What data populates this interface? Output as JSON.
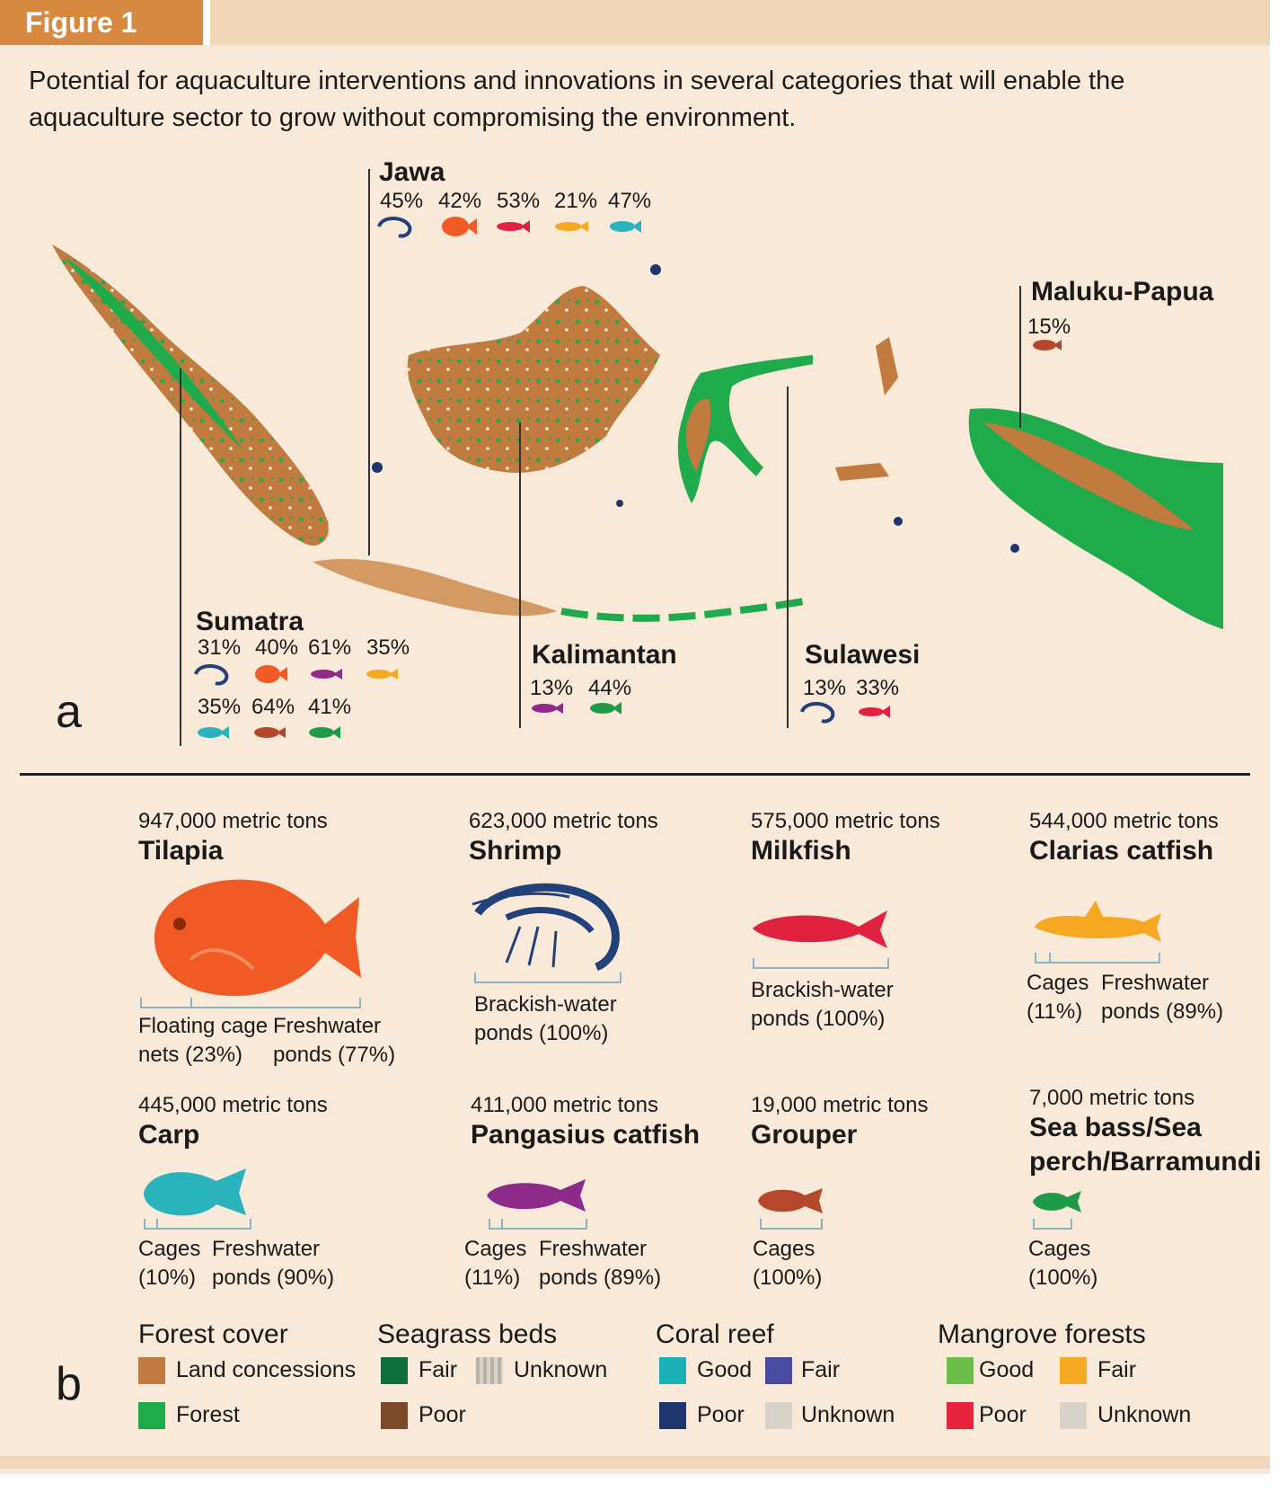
{
  "figure_label": "Figure 1",
  "caption": "Potential for aquaculture interventions and innovations in several categories that will enable the aquaculture sector to grow without compromising the environment.",
  "panel_a_letter": "a",
  "panel_b_letter": "b",
  "regions": [
    {
      "name": "Jawa",
      "percentages": [
        "45%",
        "42%",
        "53%",
        "21%",
        "47%"
      ],
      "icons": [
        "shrimp-icon",
        "tilapia-icon",
        "milkfish-icon",
        "clarias-catfish-icon",
        "carp-icon"
      ]
    },
    {
      "name": "Maluku-Papua",
      "percentages": [
        "15%"
      ],
      "icons": [
        "grouper-icon"
      ]
    },
    {
      "name": "Sumatra",
      "percentages": [
        "31%",
        "40%",
        "61%",
        "35%",
        "35%",
        "64%",
        "41%"
      ],
      "icons": [
        "shrimp-icon",
        "tilapia-icon",
        "pangasius-catfish-icon",
        "clarias-catfish-icon",
        "carp-icon",
        "grouper-icon",
        "sea-bass-icon"
      ]
    },
    {
      "name": "Kalimantan",
      "percentages": [
        "13%",
        "44%"
      ],
      "icons": [
        "pangasius-catfish-icon",
        "sea-bass-icon"
      ]
    },
    {
      "name": "Sulawesi",
      "percentages": [
        "13%",
        "33%"
      ],
      "icons": [
        "shrimp-icon",
        "milkfish-icon"
      ]
    }
  ],
  "species": [
    {
      "tons": "947,000 metric tons",
      "name": "Tilapia",
      "methods": [
        "Floating cage nets (23%)",
        "Freshwater ponds (77%)"
      ],
      "icon": "tilapia-icon",
      "color": "#f05a24"
    },
    {
      "tons": "623,000 metric tons",
      "name": "Shrimp",
      "methods": [
        "Brackish-water ponds (100%)"
      ],
      "icon": "shrimp-icon",
      "color": "#22407a"
    },
    {
      "tons": "575,000 metric tons",
      "name": "Milkfish",
      "methods": [
        "Brackish-water ponds (100%)"
      ],
      "icon": "milkfish-icon",
      "color": "#e0213f"
    },
    {
      "tons": "544,000 metric tons",
      "name": "Clarias catfish",
      "methods": [
        "Cages (11%)",
        "Freshwater ponds (89%)"
      ],
      "icon": "clarias-catfish-icon",
      "color": "#f7a823"
    },
    {
      "tons": "445,000 metric tons",
      "name": "Carp",
      "methods": [
        "Cages (10%)",
        "Freshwater ponds (90%)"
      ],
      "icon": "carp-icon",
      "color": "#2ab3bd"
    },
    {
      "tons": "411,000 metric tons",
      "name": "Pangasius catfish",
      "methods": [
        "Cages (11%)",
        "Freshwater ponds (89%)"
      ],
      "icon": "pangasius-catfish-icon",
      "color": "#8e2a8a"
    },
    {
      "tons": "19,000 metric tons",
      "name": "Grouper",
      "methods": [
        "Cages (100%)"
      ],
      "icon": "grouper-icon",
      "color": "#b5482a"
    },
    {
      "tons": "7,000 metric tons",
      "name": "Sea bass/Sea perch/Barramundi",
      "methods": [
        "Cages (100%)"
      ],
      "icon": "sea-bass-icon",
      "color": "#1f9a48"
    }
  ],
  "legend": [
    {
      "title": "Forest cover",
      "items": [
        {
          "label": "Land concessions",
          "color": "#c27b3e"
        },
        {
          "label": "Forest",
          "color": "#1faa4b"
        }
      ]
    },
    {
      "title": "Seagrass beds",
      "items": [
        {
          "label": "Fair",
          "color": "#0f6e3a"
        },
        {
          "label": "Unknown",
          "color": "#c9c3bd"
        },
        {
          "label": "Poor",
          "color": "#7b4a2a"
        }
      ]
    },
    {
      "title": "Coral reef",
      "items": [
        {
          "label": "Good",
          "color": "#1ab0b5"
        },
        {
          "label": "Fair",
          "color": "#4a4aa0"
        },
        {
          "label": "Poor",
          "color": "#1f356e"
        },
        {
          "label": "Unknown",
          "color": "#d8d2cb"
        }
      ]
    },
    {
      "title": "Mangrove forests",
      "items": [
        {
          "label": "Good",
          "color": "#6cbf4a"
        },
        {
          "label": "Fair",
          "color": "#f7a823"
        },
        {
          "label": "Poor",
          "color": "#e8233e"
        },
        {
          "label": "Unknown",
          "color": "#d8d2cb"
        }
      ]
    }
  ],
  "map_colors": {
    "land": "#c27b3e",
    "forest": "#1faa4b",
    "coral_poor": "#1f356e"
  }
}
